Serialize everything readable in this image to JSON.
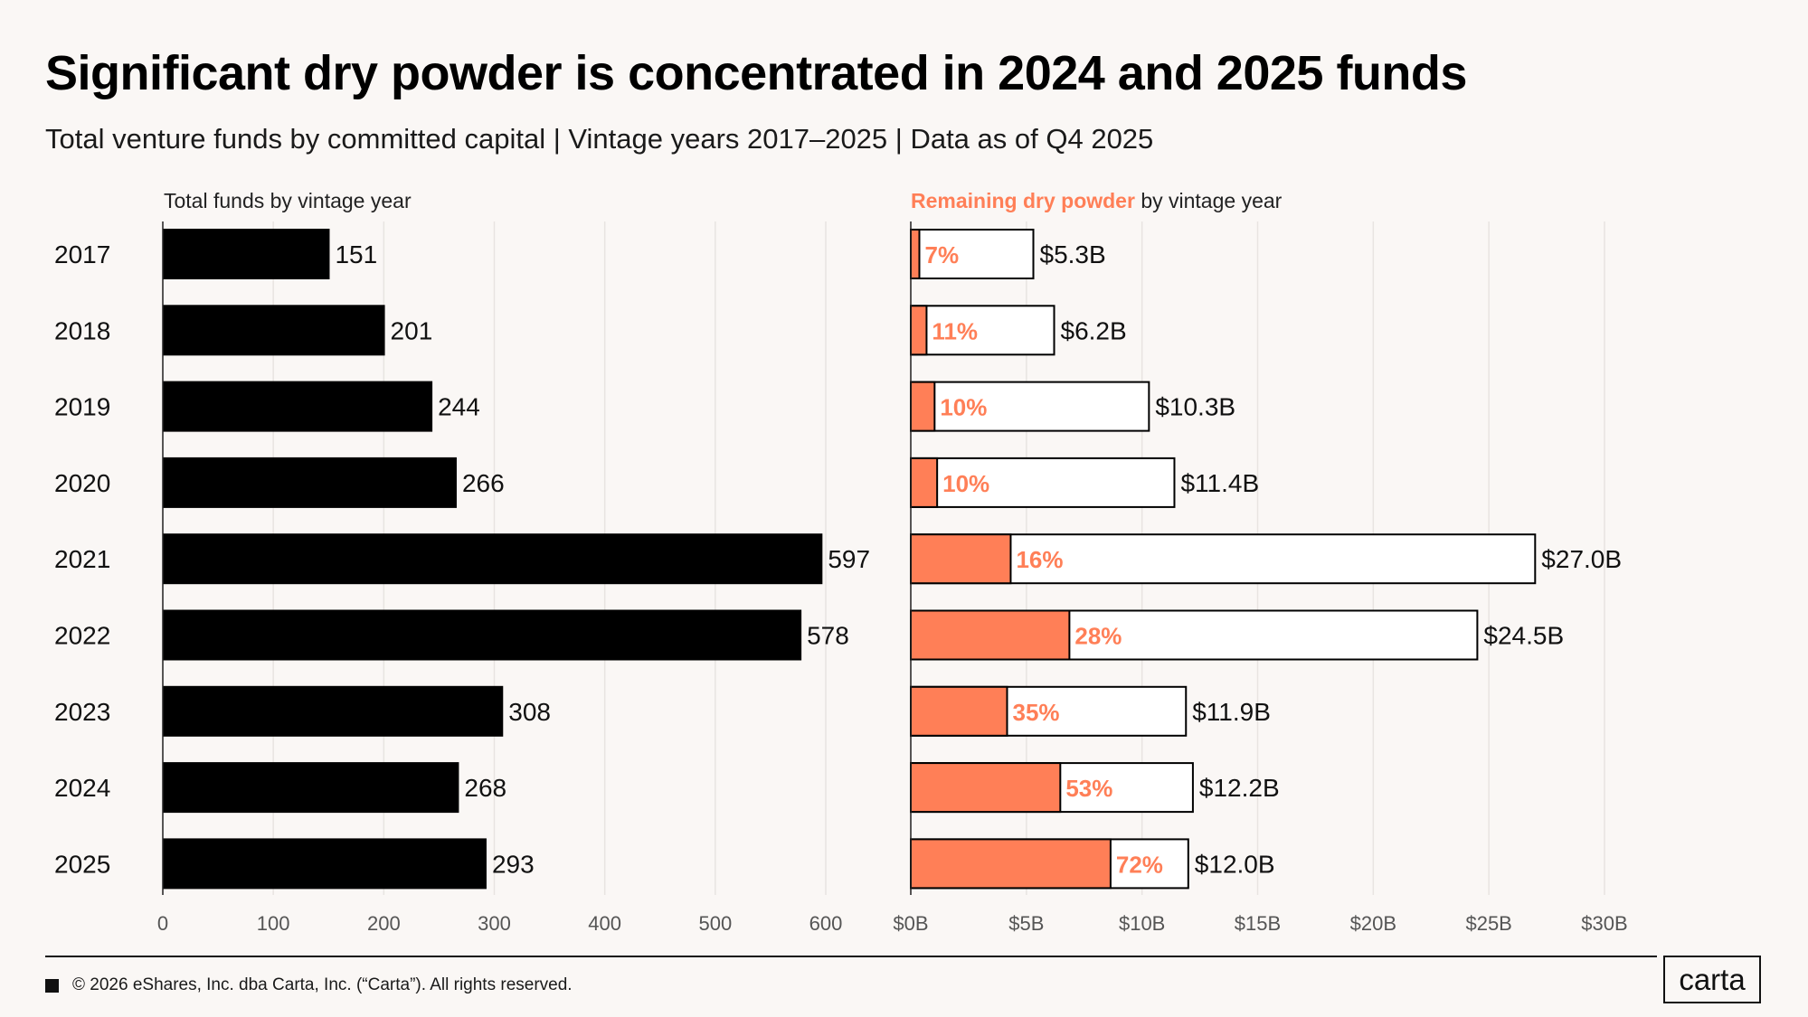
{
  "title": "Significant dry powder is concentrated in 2024 and 2025 funds",
  "subtitle": "Total venture funds by committed capital | Vintage years 2017–2025 | Data as of Q4 2025",
  "colors": {
    "bar": "#000000",
    "accent": "#ff7f57",
    "grid": "#e8e4e1",
    "background": "#faf7f5"
  },
  "chart_data": [
    {
      "type": "bar",
      "orientation": "horizontal",
      "title": "Total funds by vintage year",
      "categories": [
        "2017",
        "2018",
        "2019",
        "2020",
        "2021",
        "2022",
        "2023",
        "2024",
        "2025"
      ],
      "values": [
        151,
        201,
        244,
        266,
        597,
        578,
        308,
        268,
        293
      ],
      "xlim": [
        0,
        600
      ],
      "xticks": [
        0,
        100,
        200,
        300,
        400,
        500,
        600
      ],
      "xtick_labels": [
        "0",
        "100",
        "200",
        "300",
        "400",
        "500",
        "600"
      ],
      "grid": true
    },
    {
      "type": "bar",
      "orientation": "horizontal",
      "title_highlight": "Remaining dry powder",
      "title_rest": " by vintage year",
      "categories": [
        "2017",
        "2018",
        "2019",
        "2020",
        "2021",
        "2022",
        "2023",
        "2024",
        "2025"
      ],
      "total_values": [
        5.3,
        6.2,
        10.3,
        11.4,
        27.0,
        24.5,
        11.9,
        12.2,
        12.0
      ],
      "total_labels": [
        "$5.3B",
        "$6.2B",
        "$10.3B",
        "$11.4B",
        "$27.0B",
        "$24.5B",
        "$11.9B",
        "$12.2B",
        "$12.0B"
      ],
      "remaining_pct": [
        7,
        11,
        10,
        10,
        16,
        28,
        35,
        53,
        72
      ],
      "remaining_labels": [
        "7%",
        "11%",
        "10%",
        "10%",
        "16%",
        "28%",
        "35%",
        "53%",
        "72%"
      ],
      "unit": "$B",
      "xlim": [
        0,
        30
      ],
      "xticks": [
        0,
        5,
        10,
        15,
        20,
        25,
        30
      ],
      "xtick_labels": [
        "$0B",
        "$5B",
        "$10B",
        "$15B",
        "$20B",
        "$25B",
        "$30B"
      ],
      "grid": true
    }
  ],
  "footer": {
    "copyright": "© 2026 eShares, Inc. dba Carta, Inc. (“Carta”). All rights reserved."
  },
  "logo": {
    "text": "carta"
  }
}
